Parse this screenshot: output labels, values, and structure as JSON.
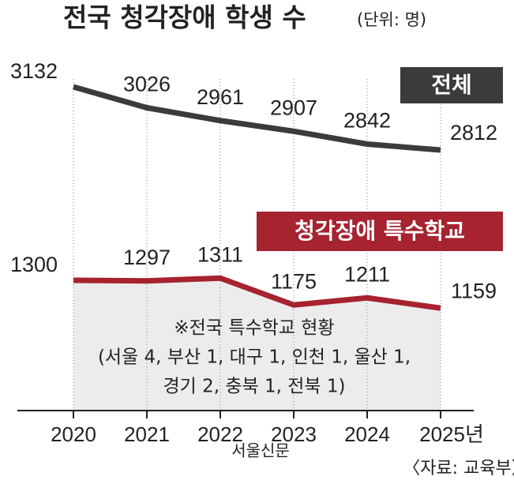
{
  "chart_data": {
    "type": "line",
    "title": "전국 청각장애 학생 수",
    "unit": "(단위: 명)",
    "categories": [
      "2020",
      "2021",
      "2022",
      "2023",
      "2024",
      "2025년"
    ],
    "series": [
      {
        "name": "전체",
        "color": "#3b3b3b",
        "values": [
          3132,
          3026,
          2961,
          2907,
          2842,
          2812
        ],
        "ylim": [
          2700,
          3300
        ]
      },
      {
        "name": "청각장애 특수학교",
        "color": "#a6232f",
        "values": [
          1300,
          1297,
          1311,
          1175,
          1211,
          1159
        ],
        "ylim": [
          1000,
          1400
        ]
      }
    ],
    "annotation": [
      "※전국 특수학교 현황",
      "(서울 4, 부산 1, 대구 1, 인천 1, 울산 1,",
      "경기 2, 충북 1, 전북 1)"
    ],
    "source": "〈자료: 교육부〉",
    "watermark": "서울신문"
  }
}
